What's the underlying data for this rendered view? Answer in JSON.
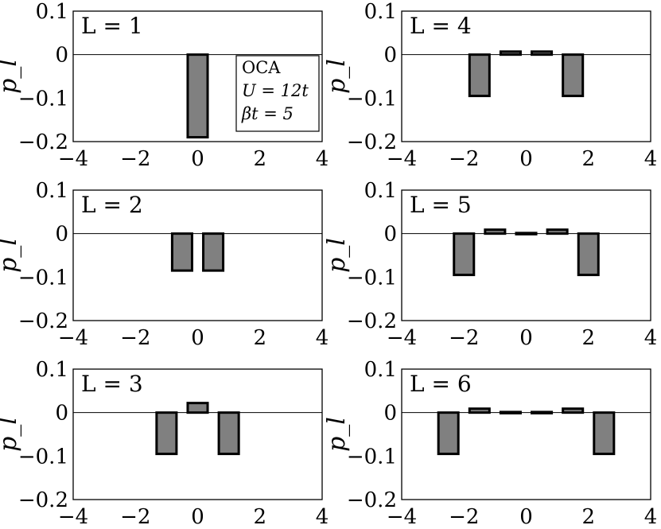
{
  "chart_data": [
    {
      "type": "bar",
      "title": "L = 1",
      "ylabel": "p_l",
      "xlim": [
        -4,
        4
      ],
      "ylim": [
        -0.2,
        0.1
      ],
      "xticks": [
        "−4",
        "−2",
        "0",
        "2",
        "4"
      ],
      "yticks": [
        "0.1",
        "0",
        "−0.1",
        "−0.2"
      ],
      "x": [
        0
      ],
      "values": [
        -0.19
      ],
      "legend": [
        "OCA",
        "U = 12t",
        "βt = 5"
      ]
    },
    {
      "type": "bar",
      "title": "L = 4",
      "ylabel": "p_l",
      "xlim": [
        -4,
        4
      ],
      "ylim": [
        -0.2,
        0.1
      ],
      "xticks": [
        "−4",
        "−2",
        "0",
        "2",
        "4"
      ],
      "yticks": [
        "0.1",
        "0",
        "−0.1",
        "−0.2"
      ],
      "x": [
        -1.5,
        -0.5,
        0.5,
        1.5
      ],
      "values": [
        -0.095,
        0.007,
        0.007,
        -0.095
      ]
    },
    {
      "type": "bar",
      "title": "L = 2",
      "ylabel": "p_l",
      "xlim": [
        -4,
        4
      ],
      "ylim": [
        -0.2,
        0.1
      ],
      "xticks": [
        "−4",
        "−2",
        "0",
        "2",
        "4"
      ],
      "yticks": [
        "0.1",
        "0",
        "−0.1",
        "−0.2"
      ],
      "x": [
        -0.5,
        0.5
      ],
      "values": [
        -0.085,
        -0.085
      ]
    },
    {
      "type": "bar",
      "title": "L = 5",
      "ylabel": "p_l",
      "xlim": [
        -4,
        4
      ],
      "ylim": [
        -0.2,
        0.1
      ],
      "xticks": [
        "−4",
        "−2",
        "0",
        "2",
        "4"
      ],
      "yticks": [
        "0.1",
        "0",
        "−0.1",
        "−0.2"
      ],
      "x": [
        -2,
        -1,
        0,
        1,
        2
      ],
      "values": [
        -0.095,
        0.009,
        -0.002,
        0.009,
        -0.095
      ]
    },
    {
      "type": "bar",
      "title": "L = 3",
      "ylabel": "p_l",
      "xlim": [
        -4,
        4
      ],
      "ylim": [
        -0.2,
        0.1
      ],
      "xticks": [
        "−4",
        "−2",
        "0",
        "2",
        "4"
      ],
      "yticks": [
        "0.1",
        "0",
        "−0.1",
        "−0.2"
      ],
      "x": [
        -1,
        0,
        1
      ],
      "values": [
        -0.095,
        0.022,
        -0.095
      ]
    },
    {
      "type": "bar",
      "title": "L = 6",
      "ylabel": "p_l",
      "xlim": [
        -4,
        4
      ],
      "ylim": [
        -0.2,
        0.1
      ],
      "xticks": [
        "−4",
        "−2",
        "0",
        "2",
        "4"
      ],
      "yticks": [
        "0.1",
        "0",
        "−0.1",
        "−0.2"
      ],
      "x": [
        -2.5,
        -1.5,
        -0.5,
        0.5,
        1.5,
        2.5
      ],
      "values": [
        -0.095,
        0.009,
        -0.001,
        -0.001,
        0.009,
        -0.095
      ]
    }
  ]
}
